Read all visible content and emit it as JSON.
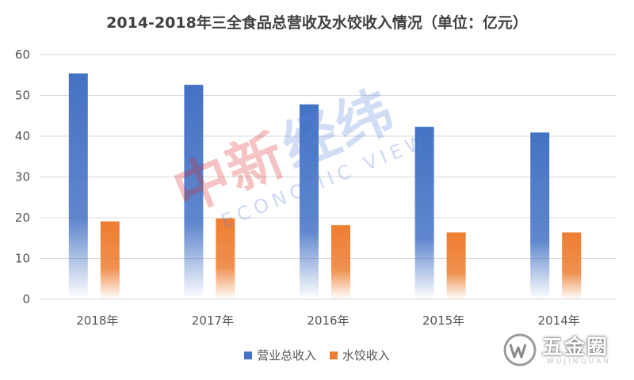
{
  "chart_data": {
    "type": "bar",
    "title": "2014-2018年三全食品总营收及水饺收入情况（单位：亿元）",
    "categories": [
      "2018年",
      "2017年",
      "2016年",
      "2015年",
      "2014年"
    ],
    "series": [
      {
        "name": "营业总收入",
        "values": [
          55.4,
          52.6,
          47.8,
          42.3,
          40.9
        ],
        "color": "#4472c4"
      },
      {
        "name": "水饺收入",
        "values": [
          19.1,
          19.8,
          18.2,
          16.4,
          16.4
        ],
        "color": "#ed7d31"
      }
    ],
    "ylim": [
      0,
      60
    ],
    "yticks": [
      0,
      10,
      20,
      30,
      40,
      50,
      60
    ],
    "xlabel": "",
    "ylabel": "",
    "grid": true,
    "legend": "bottom",
    "bar_style": "gradient-fade-to-bottom"
  },
  "watermark": {
    "chinese_part1": "中新",
    "chinese_part2": "经纬",
    "english": "ECONOMIC VIEW"
  },
  "logo": {
    "name": "五金圈",
    "subtitle": "WUJINQUAN"
  }
}
